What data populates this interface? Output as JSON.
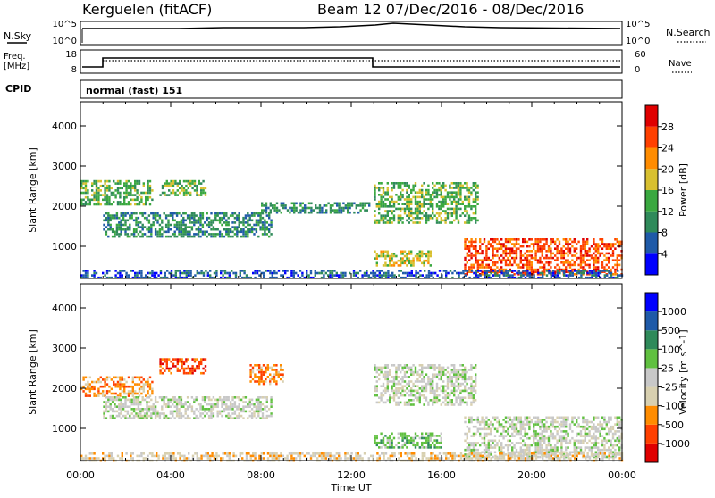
{
  "header": {
    "station": "Kerguelen (fitACF)",
    "beam_and_dates": "Beam 12  07/Dec/2016 - 08/Dec/2016"
  },
  "panels": {
    "nsky_label": "N.Sky",
    "nsky_ticks": [
      "10^5",
      "10^0"
    ],
    "nsearch_label": "N.Search",
    "nsearch_ticks": [
      "10^5",
      "10^0"
    ],
    "freq_label_line1": "Freq.",
    "freq_label_line2": "[MHz]",
    "freq_ticks": [
      "18",
      "8"
    ],
    "nave_label": "Nave",
    "nave_ticks": [
      "60",
      "0"
    ],
    "cpid_label": "CPID",
    "cpid_value": "normal (fast) 151"
  },
  "colors": {
    "power": [
      "#0000ff",
      "#1f5aa8",
      "#2f8a5a",
      "#3aa840",
      "#d8c030",
      "#ff8c00",
      "#ff4000",
      "#e00000"
    ],
    "velocity": [
      "#e00000",
      "#ff4000",
      "#ff8c00",
      "#d8d0b0",
      "#c8c8c8",
      "#60c040",
      "#2f8a5a",
      "#1f5aa8",
      "#0000ff"
    ],
    "groundscatter": "#bdbdbd"
  },
  "chart_data": [
    {
      "type": "heatmap",
      "name": "power",
      "ylabel": "Slant Range [km]",
      "ylim": [
        200,
        4600
      ],
      "y_ticks": [
        "4000",
        "3000",
        "2000",
        "1000"
      ],
      "colorbar_label": "Power [dB]",
      "colorbar_ticks": [
        "28",
        "24",
        "20",
        "16",
        "12",
        "8",
        "4"
      ],
      "x_ticks": [
        "00:00",
        "04:00",
        "08:00",
        "12:00",
        "16:00",
        "20:00",
        "00:00"
      ],
      "regions": [
        {
          "t": [
            0.0,
            3.2
          ],
          "r": [
            2050,
            2650
          ],
          "level": 3
        },
        {
          "t": [
            1.0,
            8.5
          ],
          "r": [
            1250,
            1850
          ],
          "level": 2
        },
        {
          "t": [
            3.5,
            5.5
          ],
          "r": [
            2300,
            2650
          ],
          "level": 3
        },
        {
          "t": [
            8.0,
            12.8
          ],
          "r": [
            1850,
            2100
          ],
          "level": 2
        },
        {
          "t": [
            13.0,
            17.6
          ],
          "r": [
            1600,
            2600
          ],
          "level": 3
        },
        {
          "t": [
            13.0,
            15.5
          ],
          "r": [
            500,
            900
          ],
          "level": 4
        },
        {
          "t": [
            17.0,
            24.0
          ],
          "r": [
            300,
            1200
          ],
          "level": 6
        },
        {
          "t": [
            0.0,
            24.0
          ],
          "r": [
            200,
            420
          ],
          "level": 1
        }
      ]
    },
    {
      "type": "heatmap",
      "name": "velocity",
      "ylabel": "Slant Range [km]",
      "ylim": [
        200,
        4600
      ],
      "y_ticks": [
        "4000",
        "3000",
        "2000",
        "1000"
      ],
      "colorbar_label": "Velocity [m s^-1]",
      "colorbar_ticks": [
        "1000",
        "500",
        "100",
        "25",
        "-25",
        "-100",
        "-500",
        "-1000"
      ],
      "xlabel": "Time UT",
      "x_ticks": [
        "00:00",
        "04:00",
        "08:00",
        "12:00",
        "16:00",
        "20:00",
        "00:00"
      ],
      "regions": [
        {
          "t": [
            0.0,
            3.2
          ],
          "r": [
            1800,
            2300
          ],
          "level": 2
        },
        {
          "t": [
            3.5,
            5.5
          ],
          "r": [
            2400,
            2750
          ],
          "level": 1
        },
        {
          "t": [
            1.0,
            8.5
          ],
          "r": [
            1250,
            1800
          ],
          "level": 4
        },
        {
          "t": [
            7.5,
            9.0
          ],
          "r": [
            2100,
            2600
          ],
          "level": 2
        },
        {
          "t": [
            13.0,
            17.5
          ],
          "r": [
            1600,
            2600
          ],
          "level": 4
        },
        {
          "t": [
            13.0,
            16.0
          ],
          "r": [
            500,
            900
          ],
          "level": 5
        },
        {
          "t": [
            17.0,
            24.0
          ],
          "r": [
            300,
            1300
          ],
          "level": 4
        },
        {
          "t": [
            0.0,
            24.0
          ],
          "r": [
            200,
            400
          ],
          "level": 3
        }
      ]
    }
  ]
}
